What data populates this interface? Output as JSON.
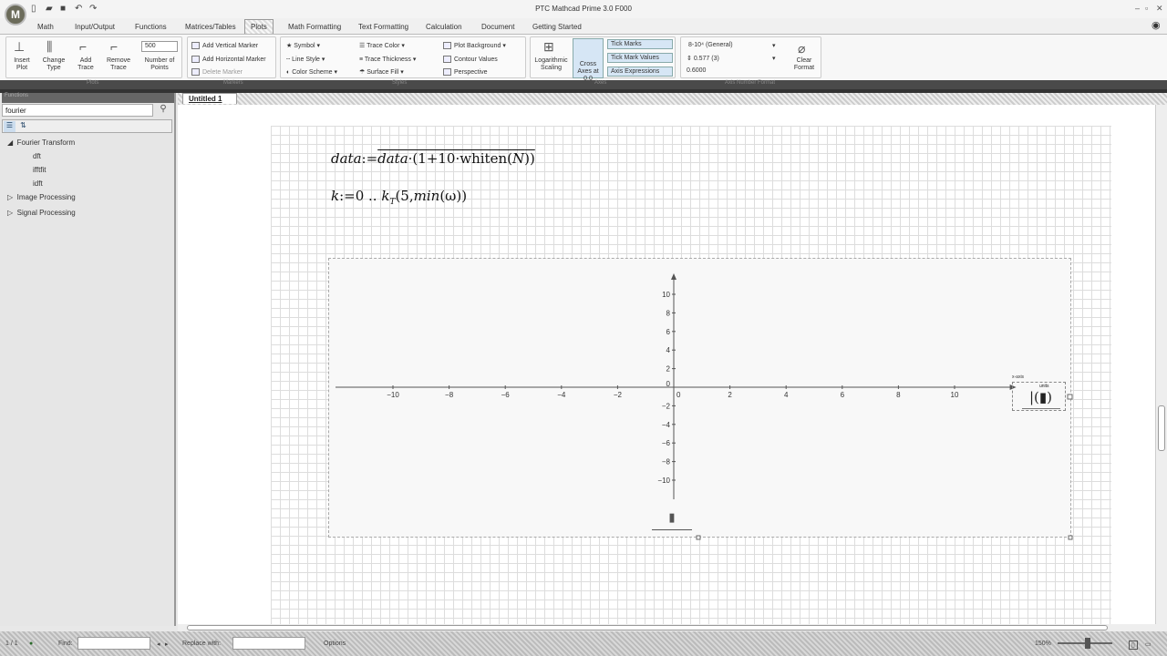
{
  "app": {
    "title": "PTC Mathcad Prime 3.0 F000",
    "logo": "M"
  },
  "quick_access": [
    "new-icon",
    "open-icon",
    "save-icon",
    "undo-icon",
    "redo-icon"
  ],
  "window_controls": [
    "minimize",
    "restore",
    "close"
  ],
  "tabs": [
    "Math",
    "Input/Output",
    "Functions",
    "Matrices/Tables",
    "Plots",
    "Math Formatting",
    "Text Formatting",
    "Calculation",
    "Document",
    "Getting Started"
  ],
  "active_tab": "Plots",
  "ribbon": {
    "plots_group": {
      "insert_plot": "Insert Plot",
      "change_type": "Change Type",
      "add_trace": "Add Trace",
      "remove_trace": "Remove Trace",
      "points_value": "500",
      "number_of_points": "Number of Points",
      "label": "Plots"
    },
    "markers_group": {
      "add_vertical": "Add Vertical Marker",
      "add_horizontal": "Add Horizontal Marker",
      "delete": "Delete Marker",
      "label": "Markers"
    },
    "styles_group": {
      "symbol": "Symbol",
      "line_style": "Line Style",
      "color_scheme": "Color Scheme",
      "trace_color": "Trace Color",
      "trace_thickness": "Trace Thickness",
      "surface_fill": "Surface Fill",
      "plot_background": "Plot Background",
      "contour_values": "Contour Values",
      "perspective": "Perspective",
      "label": "Styles"
    },
    "axes_group": {
      "log_scaling": "Logarithmic Scaling",
      "cross_axes": "Cross Axes at 0,0",
      "tick_marks": "Tick Marks",
      "tick_mark_values": "Tick Mark Values",
      "axis_expressions": "Axis Expressions",
      "label": "Axes"
    },
    "format_group": {
      "number_format": "8-10⁴ (General)",
      "precision": "0.577 (3)",
      "sample": "0.6000",
      "label": "Axis Number Format"
    },
    "clear": "Clear Format"
  },
  "sidebar": {
    "title": "Functions",
    "search_value": "fourier",
    "tree": [
      {
        "label": "Fourier Transform",
        "expanded": true,
        "children": [
          "dft",
          "ifftfit",
          "idft"
        ]
      },
      {
        "label": "Image Processing",
        "expanded": false
      },
      {
        "label": "Signal Processing",
        "expanded": false
      }
    ]
  },
  "document": {
    "tab": "Untitled 1",
    "eq1": {
      "lhs": "data",
      "def": ":=",
      "rhs_a": "data",
      "rhs_b": "·(1+10·whiten(",
      "rhs_c": "N",
      "rhs_d": "))"
    },
    "eq2": {
      "lhs": "k",
      "def": ":=",
      "range": "0 .. ",
      "func": "k",
      "sub": "T",
      "args_a": "(5,",
      "args_b": "min",
      "args_c": "(ω))"
    }
  },
  "chart_data": {
    "type": "line",
    "series": [],
    "xlim": [
      -12,
      12
    ],
    "ylim": [
      -12,
      12
    ],
    "x_ticks": [
      -10,
      -8,
      -6,
      -4,
      -2,
      0,
      2,
      4,
      6,
      8,
      10
    ],
    "y_ticks": [
      10,
      8,
      6,
      4,
      2,
      0,
      -2,
      -4,
      -6,
      -8,
      -10
    ],
    "x_axis_placeholder_label": "x-axis",
    "units_label": "units",
    "grid": false
  },
  "status": {
    "page": "1 / 1",
    "find": "Find:",
    "replace": "Replace with:",
    "options": "Options",
    "zoom": "150%"
  }
}
